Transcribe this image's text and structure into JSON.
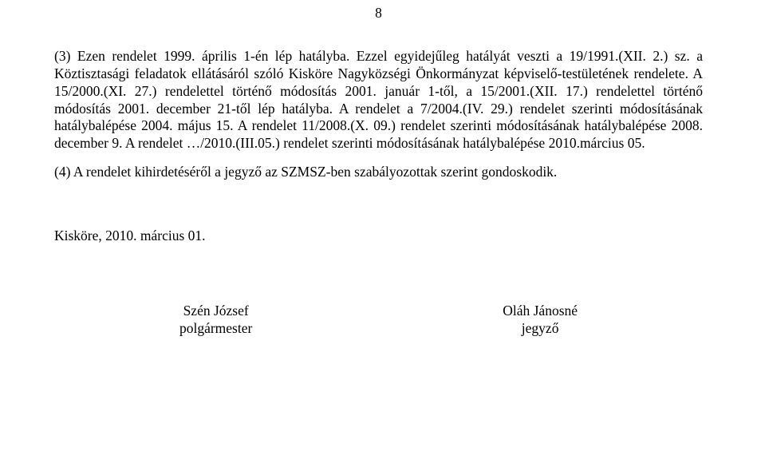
{
  "page_number": "8",
  "para3": "(3) Ezen rendelet 1999. április 1-én lép hatályba. Ezzel egyidejűleg hatályát veszti a 19/1991.(XII. 2.) sz. a Köztisztasági feladatok ellátásáról szóló Kisköre Nagyközségi Önkormányzat képviselő-testületének rendelete. A 15/2000.(XI. 27.) rendelettel történő módosítás 2001. január 1-től, a 15/2001.(XII. 17.) rendelettel történő módosítás 2001. december 21-től lép hatályba. A rendelet a 7/2004.(IV. 29.) rendelet szerinti módosításának hatálybalépése 2004. május 15. A rendelet 11/2008.(X. 09.) rendelet szerinti módosításának hatálybalépése 2008. december 9. A rendelet …/2010.(III.05.) rendelet szerinti módosításának hatálybalépése 2010.március 05.",
  "para4": "(4) A rendelet kihirdetéséről a jegyző az SZMSZ-ben szabályozottak szerint gondoskodik.",
  "closing": "Kisköre, 2010. március 01.",
  "signatures": {
    "left_name": "Szén József",
    "left_title": "polgármester",
    "right_name": "Oláh Jánosné",
    "right_title": "jegyző"
  }
}
